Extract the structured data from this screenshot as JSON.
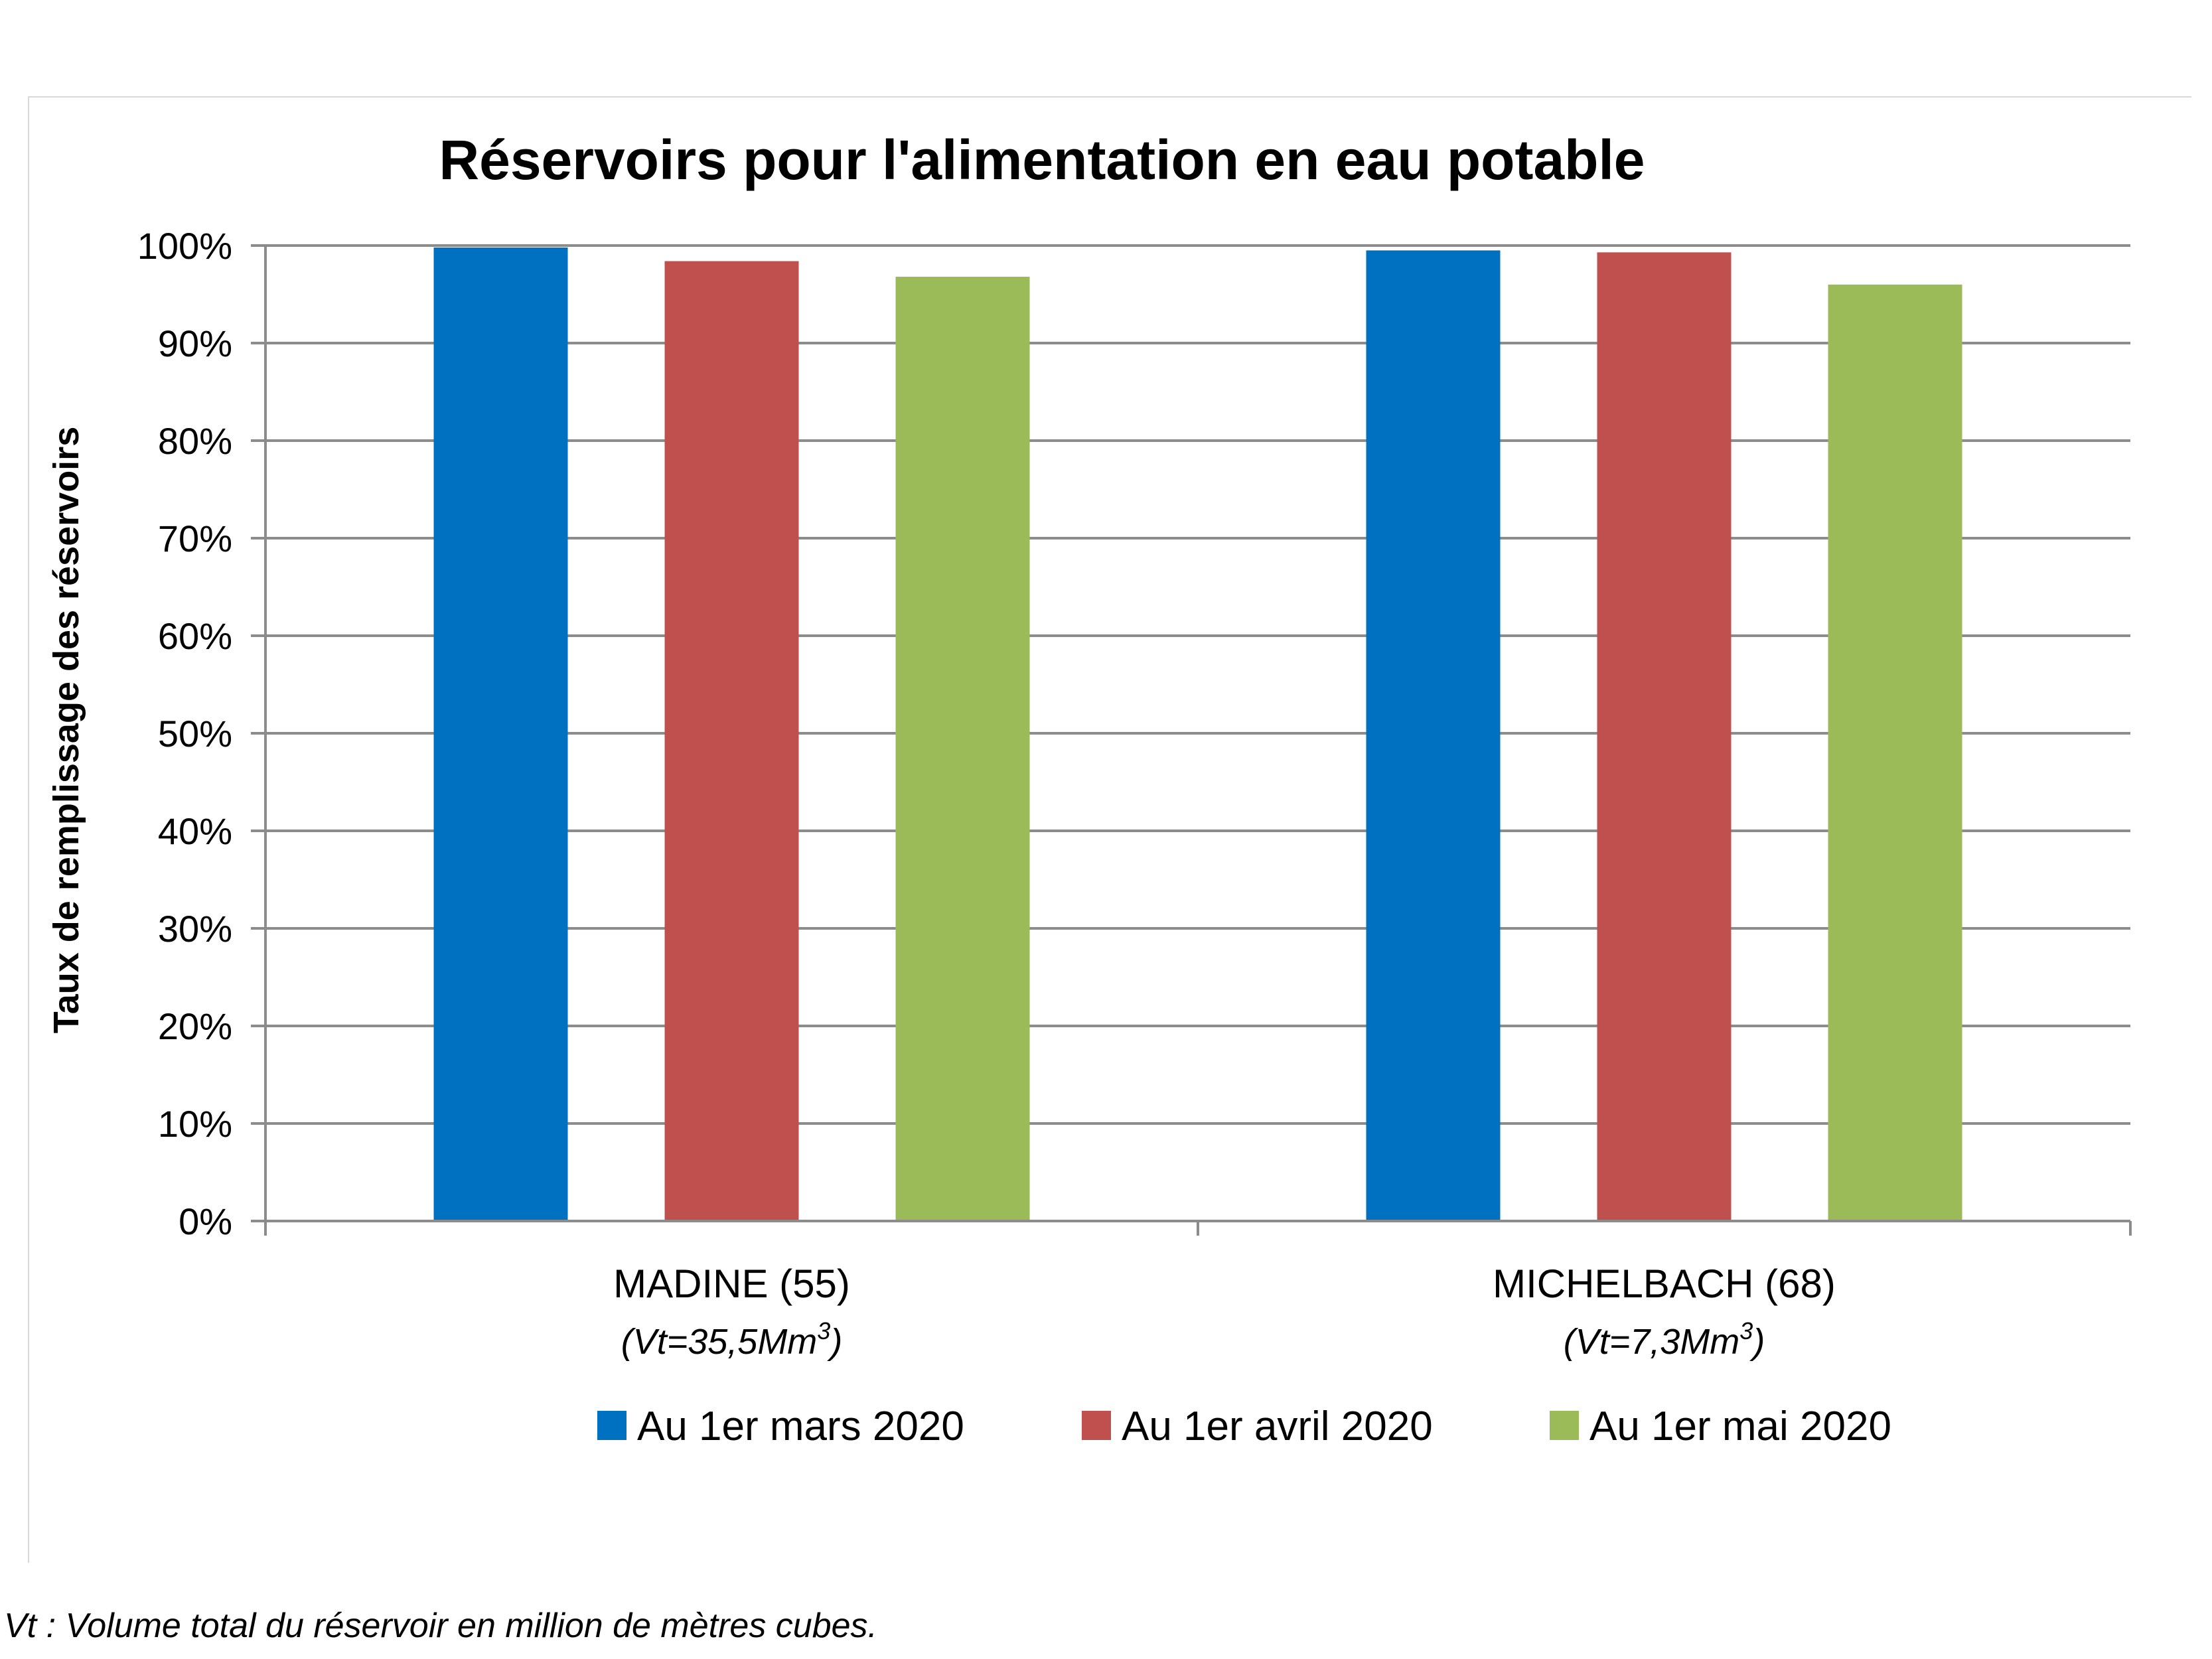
{
  "chart_data": {
    "type": "bar",
    "title": "Réservoirs pour l'alimentation en eau potable",
    "ylabel": "Taux de remplissage des réservoirs",
    "xlabel": "",
    "ylim": [
      0,
      100
    ],
    "yticks": [
      "0%",
      "10%",
      "20%",
      "30%",
      "40%",
      "50%",
      "60%",
      "70%",
      "80%",
      "90%",
      "100%"
    ],
    "categories": [
      "MADINE (55)",
      "MICHELBACH (68)"
    ],
    "category_subtitles": [
      "(Vt=35,5Mm",
      "(Vt=7,3Mm"
    ],
    "subtitle_sup": "3",
    "subtitle_close": ")",
    "series": [
      {
        "name": "Au 1er mars 2020",
        "color": "#0070C0",
        "values": [
          99.8,
          99.5
        ]
      },
      {
        "name": "Au 1er avril 2020",
        "color": "#C0504D",
        "values": [
          98.4,
          99.3
        ]
      },
      {
        "name": "Au 1er mai 2020",
        "color": "#9BBB59",
        "values": [
          96.8,
          96.0
        ]
      }
    ],
    "grid": true,
    "legend_position": "bottom"
  },
  "footnote": "Vt : Volume total du réservoir en million de mètres cubes."
}
